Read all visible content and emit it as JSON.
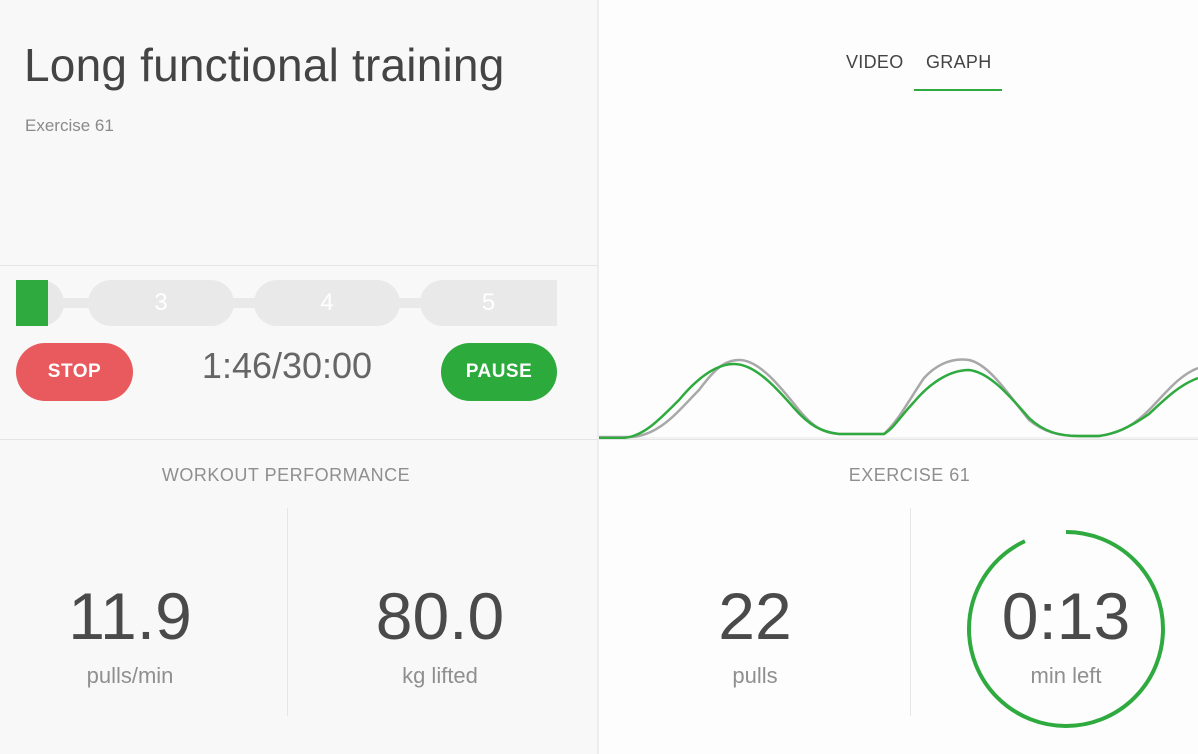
{
  "workout": {
    "title": "Long functional training",
    "exercise_label": "Exercise 61"
  },
  "progress": {
    "segments": [
      "3",
      "4",
      "5"
    ],
    "current_segment_fill": 0.66
  },
  "controls": {
    "stop_label": "STOP",
    "pause_label": "PAUSE",
    "timer": "1:46/30:00"
  },
  "performance": {
    "title": "WORKOUT PERFORMANCE",
    "pulls_per_min_value": "11.9",
    "pulls_per_min_unit": "pulls/min",
    "kg_lifted_value": "80.0",
    "kg_lifted_unit": "kg lifted"
  },
  "tabs": {
    "video": "VIDEO",
    "graph": "GRAPH",
    "active": "GRAPH"
  },
  "exercise": {
    "title": "EXERCISE 61",
    "pulls_value": "22",
    "pulls_unit": "pulls",
    "time_left_value": "0:13",
    "time_left_unit": "min left",
    "time_left_progress": 0.93
  },
  "colors": {
    "accent_green": "#2eaa3f",
    "stop_red": "#e95a5e",
    "graph_reference": "#a8a8a8"
  }
}
